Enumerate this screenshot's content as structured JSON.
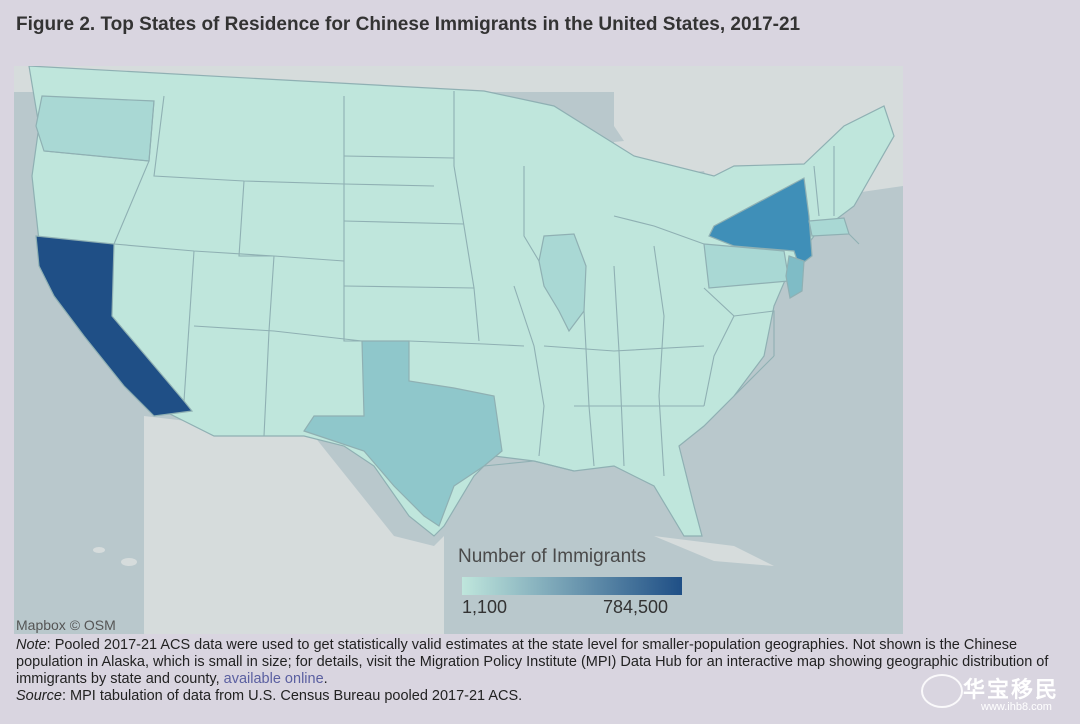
{
  "title": "Figure 2. Top States of Residence for Chinese Immigrants in the United States, 2017-21",
  "map": {
    "credit": "Mapbox © OSM",
    "legend": {
      "title": "Number of Immigrants",
      "min_label": "1,100",
      "max_label": "784,500",
      "color_low": "#bfe6dc",
      "color_high": "#1f4f86"
    },
    "colors": {
      "water": "#b9c8cc",
      "land_outside": "#d6dcdc",
      "base_state": "#bfe6dc",
      "ca": "#1f4f86",
      "ny": "#3f8fb8",
      "tx": "#8fc7cb",
      "nj": "#7fbcc6",
      "mid": "#a9d8d4"
    },
    "highlighted_states": [
      {
        "state": "California",
        "level": 1.0
      },
      {
        "state": "New York",
        "level": 0.6
      },
      {
        "state": "Texas",
        "level": 0.3
      },
      {
        "state": "New Jersey",
        "level": 0.35
      },
      {
        "state": "Washington",
        "level": 0.15
      },
      {
        "state": "Illinois",
        "level": 0.15
      },
      {
        "state": "Massachusetts",
        "level": 0.2
      },
      {
        "state": "Pennsylvania",
        "level": 0.12
      }
    ]
  },
  "note": {
    "label": "Note",
    "text": ": Pooled 2017-21 ACS data were used to get statistically valid estimates at the state level for smaller-population geographies. Not shown is the Chinese population in Alaska, which is small in size; for details, visit the Migration Policy Institute (MPI) Data Hub for an interactive map showing geographic distribution of immigrants by state and county, ",
    "link": "available online",
    "end": "."
  },
  "source": {
    "label": "Source",
    "text": ": MPI tabulation of data from U.S. Census Bureau pooled 2017-21 ACS."
  },
  "watermark": {
    "text": "华宝移民",
    "url": "www.ihb8.com"
  }
}
